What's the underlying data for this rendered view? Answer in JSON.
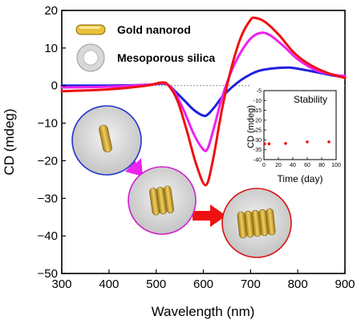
{
  "chart_data": [
    {
      "type": "line",
      "title": "",
      "xlabel": "Wavelength (nm)",
      "ylabel": "CD (mdeg)",
      "xlim": [
        300,
        900
      ],
      "ylim": [
        -50,
        20
      ],
      "xticks": [
        "300",
        "400",
        "500",
        "600",
        "700",
        "800",
        "900"
      ],
      "yticks": [
        "20",
        "10",
        "0",
        "−10",
        "−20",
        "−30",
        "−40",
        "−50"
      ],
      "baseline": 0,
      "series": [
        {
          "color": "#2020e0",
          "x": [
            300,
            400,
            480,
            510,
            525,
            540,
            560,
            580,
            600,
            610,
            625,
            640,
            660,
            680,
            700,
            720,
            750,
            780,
            800,
            830,
            870,
            900
          ],
          "y": [
            0,
            0,
            0.2,
            0.5,
            0.2,
            -1.5,
            -4,
            -6.5,
            -8,
            -7.6,
            -5.5,
            -3,
            -0.5,
            1.5,
            3,
            4,
            4.6,
            4.8,
            4.5,
            3.8,
            2.8,
            2.2
          ]
        },
        {
          "color": "#ee22ee",
          "x": [
            300,
            400,
            480,
            510,
            525,
            540,
            560,
            580,
            600,
            610,
            625,
            640,
            660,
            680,
            700,
            720,
            740,
            770,
            800,
            840,
            880,
            900
          ],
          "y": [
            -0.5,
            -0.3,
            0.2,
            0.6,
            0.2,
            -2,
            -7,
            -13,
            -17,
            -16.5,
            -10,
            -3,
            4,
            9,
            12.5,
            14,
            13.5,
            10.5,
            7,
            4,
            2.8,
            2.6
          ]
        },
        {
          "color": "#ee1111",
          "x": [
            300,
            400,
            480,
            510,
            525,
            545,
            565,
            585,
            605,
            620,
            640,
            660,
            680,
            700,
            710,
            730,
            760,
            790,
            820,
            860,
            900
          ],
          "y": [
            -1.5,
            -1,
            0,
            0.8,
            0.2,
            -4,
            -12,
            -21,
            -26.5,
            -20,
            -6,
            5,
            13,
            17.5,
            18,
            17,
            13.5,
            9,
            6,
            3.5,
            2
          ]
        }
      ],
      "annotations": {
        "legend": [
          {
            "label": "Gold nanorod",
            "icon": "gold-nanorod-icon"
          },
          {
            "label": "Mesoporous silica",
            "icon": "silica-ring-icon"
          }
        ],
        "schematic": "three silica spheres holding 1, 3 and 5 stacked gold nanorods connected by magenta and red arrows"
      }
    },
    {
      "type": "scatter",
      "title": "Stability",
      "xlabel": "Time (day)",
      "ylabel": "CD (mdeg)",
      "xlim": [
        0,
        100
      ],
      "ylim": [
        -40,
        -5
      ],
      "xticks": [
        "0",
        "20",
        "40",
        "60",
        "80",
        "100"
      ],
      "yticks": [
        "-5",
        "-10",
        "-15",
        "-20",
        "-25",
        "-30",
        "-35",
        "-40"
      ],
      "color": "#ee1111",
      "x": [
        1,
        7,
        30,
        60,
        90
      ],
      "y": [
        -32,
        -32,
        -31.8,
        -31,
        -31
      ]
    }
  ]
}
